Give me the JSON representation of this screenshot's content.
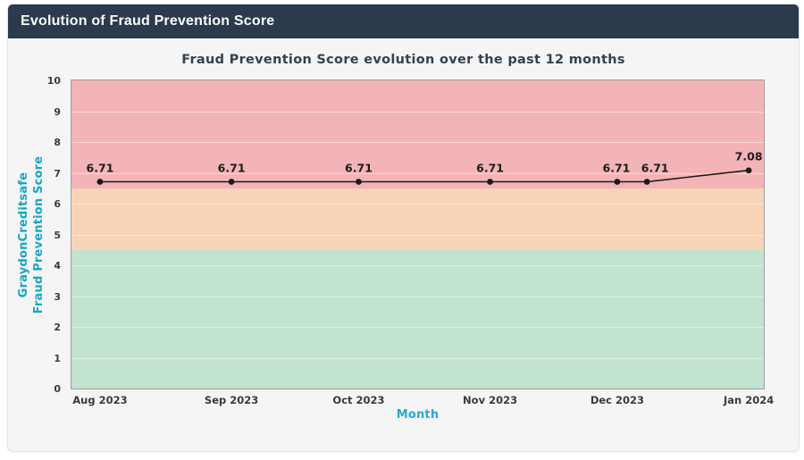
{
  "header": {
    "title": "Evolution of Fraud Prevention Score"
  },
  "colors": {
    "header_bg": "#2b3a4d",
    "line": "#1a1a1a",
    "y_axis_label": "#17a6c4",
    "x_axis_label": "#27a8d6",
    "band_high_risk": "#f3b4b7",
    "band_medium_risk": "#f7d4b8",
    "band_low_risk": "#c2e3d0"
  },
  "chart_data": {
    "type": "line",
    "title": "Fraud Prevention Score evolution over the past 12 months",
    "xlabel": "Month",
    "ylabel_line1": "GraydonCreditsafe",
    "ylabel_line2": "Fraud Prevention Score",
    "ylim": [
      0,
      10
    ],
    "y_ticks": [
      0,
      1,
      2,
      3,
      4,
      5,
      6,
      7,
      8,
      9,
      10
    ],
    "grid": "horizontal",
    "legend": "none",
    "bands": [
      {
        "name": "low",
        "from": 0,
        "to": 4.5,
        "color": "#c2e3d0"
      },
      {
        "name": "medium",
        "from": 4.5,
        "to": 6.5,
        "color": "#f7d4b8"
      },
      {
        "name": "high",
        "from": 6.5,
        "to": 10,
        "color": "#f3b4b7"
      }
    ],
    "x_ticks": [
      {
        "label": "Aug 2023",
        "x": 0.0412
      },
      {
        "label": "Sep 2023",
        "x": 0.2311
      },
      {
        "label": "Oct 2023",
        "x": 0.4148
      },
      {
        "label": "Nov 2023",
        "x": 0.6046
      },
      {
        "label": "Dec 2023",
        "x": 0.7883
      },
      {
        "label": "Jan 2024",
        "x": 0.9782
      }
    ],
    "series": [
      {
        "name": "Fraud Prevention Score",
        "color": "#1a1a1a",
        "points": [
          {
            "x": 0.0412,
            "y": 6.71,
            "label": "6.71",
            "label_dx": 0
          },
          {
            "x": 0.2311,
            "y": 6.71,
            "label": "6.71",
            "label_dx": 0
          },
          {
            "x": 0.4148,
            "y": 6.71,
            "label": "6.71",
            "label_dx": 0
          },
          {
            "x": 0.6046,
            "y": 6.71,
            "label": "6.71",
            "label_dx": 0
          },
          {
            "x": 0.7883,
            "y": 6.71,
            "label": "6.71",
            "label_dx": -1
          },
          {
            "x": 0.8312,
            "y": 6.71,
            "label": "6.71",
            "label_dx": 9
          },
          {
            "x": 0.9782,
            "y": 7.08,
            "label": "7.08",
            "label_dx": 0
          }
        ]
      }
    ]
  }
}
